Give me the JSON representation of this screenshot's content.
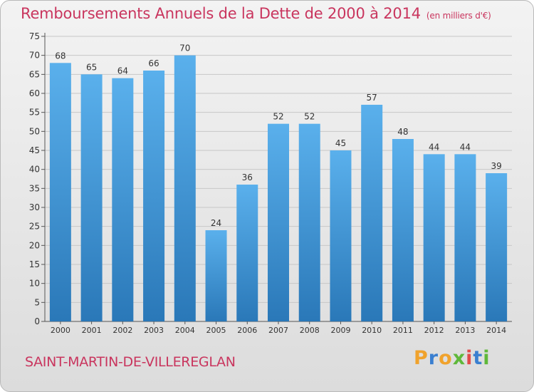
{
  "header": {
    "title": "Remboursements Annuels de la Dette de 2000 à 2014",
    "unit": "(en milliers d'€)"
  },
  "footer": {
    "commune": "SAINT-MARTIN-DE-VILLEREGLAN",
    "logo_letters": [
      "P",
      "r",
      "o",
      "x",
      "i",
      "t",
      "i"
    ]
  },
  "colors": {
    "title": "#c9355e",
    "bar_top": "#5ab0ec",
    "bar_bottom": "#2a78b8",
    "grid": "#c7c7c7",
    "logo": [
      "#f0a22c",
      "#3a7fd0",
      "#f0a22c",
      "#5fb83a",
      "#e24a4a",
      "#3a7fd0",
      "#5fb83a"
    ]
  },
  "chart_data": {
    "type": "bar",
    "categories": [
      "2000",
      "2001",
      "2002",
      "2003",
      "2004",
      "2005",
      "2006",
      "2007",
      "2008",
      "2009",
      "2010",
      "2011",
      "2012",
      "2013",
      "2014"
    ],
    "values": [
      68,
      65,
      64,
      66,
      70,
      24,
      36,
      52,
      52,
      45,
      57,
      48,
      44,
      44,
      39
    ],
    "ylim": [
      0,
      75
    ],
    "yticks": [
      0,
      5,
      10,
      15,
      20,
      25,
      30,
      35,
      40,
      45,
      50,
      55,
      60,
      65,
      70,
      75
    ],
    "grid": true,
    "data_labels": true
  }
}
